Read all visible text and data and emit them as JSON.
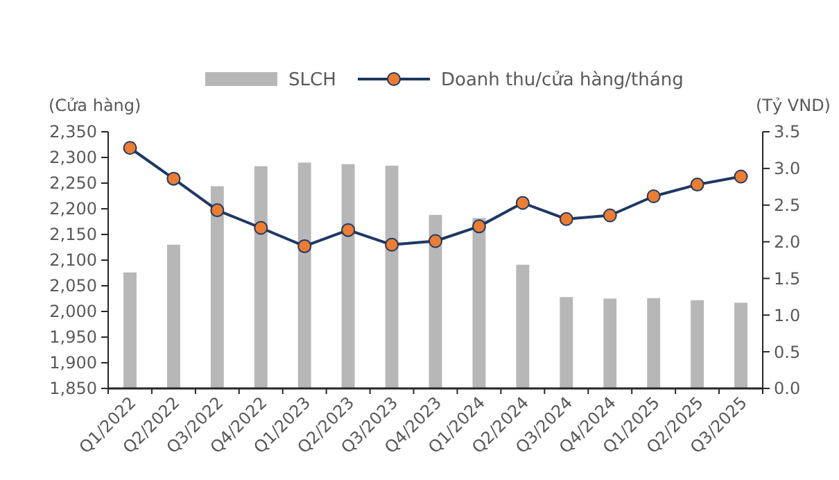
{
  "chart_data": {
    "type": "bar",
    "ylabel": "(Cửa hàng)",
    "y2label": "(Tỷ VND)",
    "categories": [
      "Q1/2022",
      "Q2/2022",
      "Q3/2022",
      "Q4/2022",
      "Q1/2023",
      "Q2/2023",
      "Q3/2023",
      "Q4/2023",
      "Q1/2024",
      "Q2/2024",
      "Q3/2024",
      "Q4/2024",
      "Q1/2025",
      "Q2/2025",
      "Q3/2025"
    ],
    "series": [
      {
        "name": "SLCH",
        "color": "#b7b7b7",
        "values": [
          2076,
          2130,
          2244,
          2283,
          2290,
          2287,
          2284,
          2188,
          2182,
          2091,
          2028,
          2025,
          2026,
          2022,
          2017
        ]
      },
      {
        "name": "Doanh thu/cửa hàng/tháng",
        "type": "line",
        "axis": "y2",
        "color": "#1f3864",
        "marker": "circle",
        "values": [
          3.28,
          2.86,
          2.43,
          2.19,
          1.94,
          2.16,
          1.96,
          2.01,
          2.21,
          2.53,
          2.31,
          2.36,
          2.62,
          2.78,
          2.89
        ]
      }
    ],
    "ylim": [
      1850,
      2350
    ],
    "yticks": [
      {
        "value": 1850,
        "label": "1,850"
      },
      {
        "value": 1900,
        "label": "1,900"
      },
      {
        "value": 1950,
        "label": "1,950"
      },
      {
        "value": 2000,
        "label": "2,000"
      },
      {
        "value": 2050,
        "label": "2,050"
      },
      {
        "value": 2100,
        "label": "2,100"
      },
      {
        "value": 2150,
        "label": "2,150"
      },
      {
        "value": 2200,
        "label": "2,200"
      },
      {
        "value": 2250,
        "label": "2,250"
      },
      {
        "value": 2300,
        "label": "2,300"
      },
      {
        "value": 2350,
        "label": "2,350"
      }
    ],
    "y2lim": [
      0,
      3.5
    ],
    "y2ticks": [
      {
        "value": 0,
        "label": "0.0"
      },
      {
        "value": 0.5,
        "label": "0.5"
      },
      {
        "value": 1,
        "label": "1.0"
      },
      {
        "value": 1.5,
        "label": "1.5"
      },
      {
        "value": 2,
        "label": "2.0"
      },
      {
        "value": 2.5,
        "label": "2.5"
      },
      {
        "value": 3,
        "label": "3.0"
      },
      {
        "value": 3.5,
        "label": "3.5"
      }
    ],
    "legend": "top",
    "grid": false
  }
}
